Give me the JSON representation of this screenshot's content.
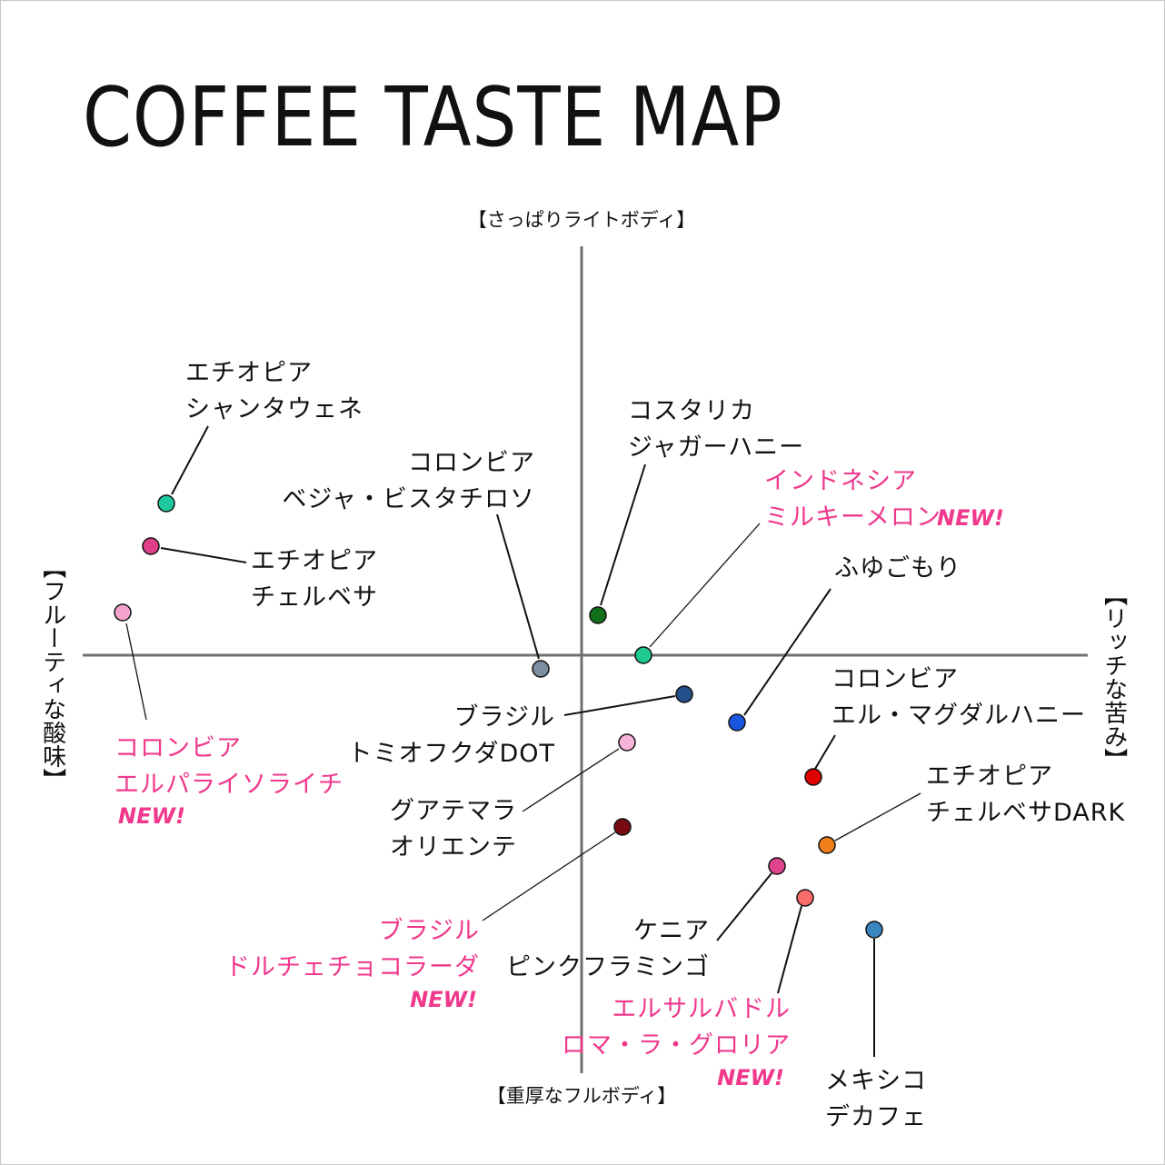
{
  "title": "COFFEE TASTE MAP",
  "axes": {
    "top": "【さっぱりライトボディ】",
    "bottom": "【重厚なフルボディ】",
    "left": "【フルーティな酸味】",
    "right": "【リッチな苦み】"
  },
  "new_badge": "NEW!",
  "coffees": [
    {
      "lines": [
        "エチオピア",
        "シャンタウェネ"
      ],
      "color": "#1ec9a0",
      "new": false
    },
    {
      "lines": [
        "エチオピア",
        "チェルベサ"
      ],
      "color": "#e0408a",
      "new": false
    },
    {
      "lines": [
        "コロンビア",
        "エルパライソライチ"
      ],
      "color": "#f5a3cc",
      "new": true
    },
    {
      "lines": [
        "コロンビア",
        "ベジャ・ビスタチロソ"
      ],
      "color": "#7b8fa1",
      "new": false
    },
    {
      "lines": [
        "コスタリカ",
        "ジャガーハニー"
      ],
      "color": "#11701a",
      "new": false
    },
    {
      "lines": [
        "インドネシア",
        "ミルキーメロン"
      ],
      "color": "#1ec98e",
      "new": true
    },
    {
      "lines": [
        "ふゆごもり"
      ],
      "color": "#1a56e0",
      "new": false
    },
    {
      "lines": [
        "ブラジル",
        "トミオフクダDOT"
      ],
      "color": "#234f8a",
      "new": false
    },
    {
      "lines": [
        "グアテマラ",
        "オリエンテ"
      ],
      "color": "#f7b3da",
      "new": false
    },
    {
      "lines": [
        "コロンビア",
        "エル・マグダルハニー"
      ],
      "color": "#e00000",
      "new": false
    },
    {
      "lines": [
        "エチオピア",
        "チェルベサDARK"
      ],
      "color": "#ef7f1a",
      "new": false
    },
    {
      "lines": [
        "ブラジル",
        "ドルチェチョコラーダ"
      ],
      "color": "#7a0a12",
      "new": true
    },
    {
      "lines": [
        "ケニア",
        "ピンクフラミンゴ"
      ],
      "color": "#e0448f",
      "new": false
    },
    {
      "lines": [
        "エルサルバドル",
        "ロマ・ラ・グロリア"
      ],
      "color": "#fa6b6b",
      "new": true
    },
    {
      "lines": [
        "メキシコ",
        "デカフェ"
      ],
      "color": "#3a86c0",
      "new": false
    }
  ]
}
